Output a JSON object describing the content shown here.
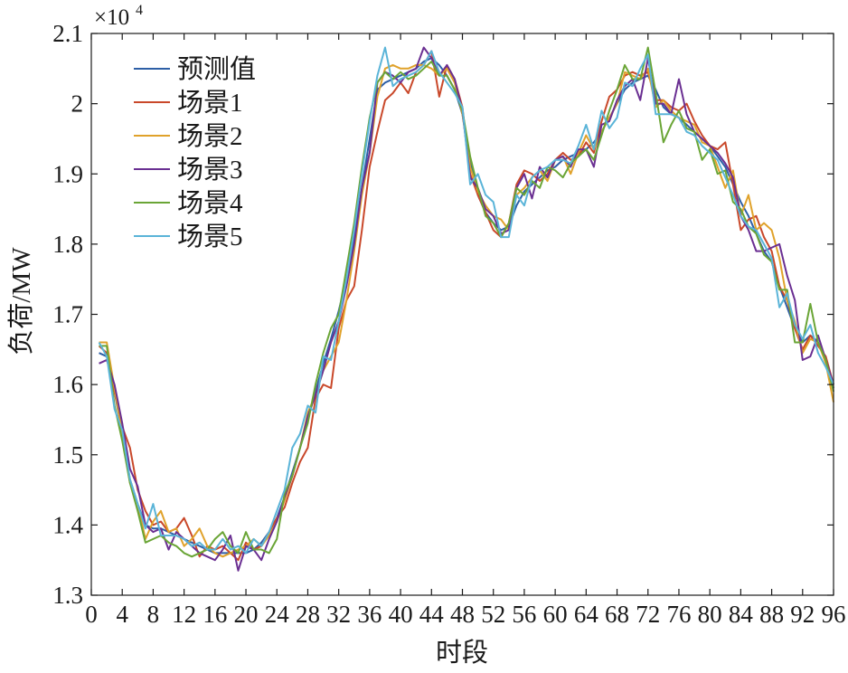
{
  "chart_data": {
    "type": "line",
    "title": "",
    "xlabel": "时段",
    "ylabel": "负荷/MW",
    "y_multiplier": "×10",
    "y_multiplier_exp": "4",
    "xlim": [
      0,
      96
    ],
    "ylim": [
      1.3,
      2.1
    ],
    "x_ticks": [
      0,
      4,
      8,
      12,
      16,
      20,
      24,
      28,
      32,
      36,
      40,
      44,
      48,
      52,
      56,
      60,
      64,
      68,
      72,
      76,
      80,
      84,
      88,
      92,
      96
    ],
    "y_ticks": [
      1.3,
      1.4,
      1.5,
      1.6,
      1.7,
      1.8,
      1.9,
      2.0,
      2.1
    ],
    "y_tick_labels": [
      "1.3",
      "1.4",
      "1.5",
      "1.6",
      "1.7",
      "1.8",
      "1.9",
      "2",
      "2.1"
    ],
    "grid": false,
    "legend_position": "top-left",
    "x": [
      1,
      2,
      3,
      4,
      5,
      6,
      7,
      8,
      9,
      10,
      11,
      12,
      13,
      14,
      15,
      16,
      17,
      18,
      19,
      20,
      21,
      22,
      23,
      24,
      25,
      26,
      27,
      28,
      29,
      30,
      31,
      32,
      33,
      34,
      35,
      36,
      37,
      38,
      39,
      40,
      41,
      42,
      43,
      44,
      45,
      46,
      47,
      48,
      49,
      50,
      51,
      52,
      53,
      54,
      55,
      56,
      57,
      58,
      59,
      60,
      61,
      62,
      63,
      64,
      65,
      66,
      67,
      68,
      69,
      70,
      71,
      72,
      73,
      74,
      75,
      76,
      77,
      78,
      79,
      80,
      81,
      82,
      83,
      84,
      85,
      86,
      87,
      88,
      89,
      90,
      91,
      92,
      93,
      94,
      95,
      96
    ],
    "series": [
      {
        "name": "预测值",
        "color": "#2d5fa6",
        "values": [
          1.645,
          1.64,
          1.59,
          1.53,
          1.465,
          1.43,
          1.4,
          1.395,
          1.395,
          1.39,
          1.385,
          1.38,
          1.375,
          1.37,
          1.365,
          1.36,
          1.36,
          1.36,
          1.36,
          1.36,
          1.365,
          1.375,
          1.39,
          1.41,
          1.44,
          1.475,
          1.51,
          1.55,
          1.59,
          1.63,
          1.665,
          1.705,
          1.75,
          1.81,
          1.88,
          1.95,
          2.02,
          2.03,
          2.035,
          2.04,
          2.045,
          2.05,
          2.06,
          2.065,
          2.055,
          2.04,
          2.02,
          1.985,
          1.92,
          1.87,
          1.845,
          1.83,
          1.82,
          1.825,
          1.855,
          1.875,
          1.885,
          1.895,
          1.905,
          1.91,
          1.92,
          1.925,
          1.93,
          1.935,
          1.945,
          1.96,
          1.98,
          2.0,
          2.02,
          2.03,
          2.035,
          2.04,
          2.02,
          1.995,
          1.985,
          1.98,
          1.97,
          1.96,
          1.95,
          1.94,
          1.925,
          1.91,
          1.885,
          1.86,
          1.84,
          1.815,
          1.79,
          1.775,
          1.74,
          1.71,
          1.68,
          1.66,
          1.67,
          1.66,
          1.635,
          1.595
        ]
      },
      {
        "name": "场景1",
        "color": "#c9482a",
        "values": [
          1.655,
          1.645,
          1.59,
          1.54,
          1.51,
          1.45,
          1.42,
          1.4,
          1.405,
          1.39,
          1.395,
          1.41,
          1.385,
          1.355,
          1.37,
          1.365,
          1.37,
          1.36,
          1.35,
          1.375,
          1.365,
          1.37,
          1.39,
          1.41,
          1.425,
          1.46,
          1.49,
          1.51,
          1.58,
          1.6,
          1.595,
          1.68,
          1.72,
          1.74,
          1.82,
          1.91,
          1.96,
          2.005,
          2.015,
          2.03,
          2.015,
          2.045,
          2.055,
          2.075,
          2.01,
          2.055,
          2.035,
          1.995,
          1.9,
          1.87,
          1.845,
          1.82,
          1.81,
          1.83,
          1.885,
          1.905,
          1.9,
          1.89,
          1.9,
          1.92,
          1.93,
          1.92,
          1.925,
          1.945,
          1.93,
          1.975,
          2.01,
          2.02,
          2.04,
          2.045,
          2.04,
          2.045,
          2.005,
          2.005,
          1.995,
          1.99,
          2.0,
          1.975,
          1.955,
          1.94,
          1.935,
          1.945,
          1.885,
          1.82,
          1.835,
          1.84,
          1.81,
          1.79,
          1.74,
          1.72,
          1.68,
          1.65,
          1.67,
          1.655,
          1.64,
          1.6
        ]
      },
      {
        "name": "场景2",
        "color": "#e0a22b",
        "values": [
          1.66,
          1.66,
          1.595,
          1.53,
          1.46,
          1.43,
          1.38,
          1.405,
          1.42,
          1.39,
          1.395,
          1.37,
          1.38,
          1.395,
          1.37,
          1.36,
          1.355,
          1.36,
          1.365,
          1.37,
          1.38,
          1.37,
          1.385,
          1.405,
          1.435,
          1.47,
          1.51,
          1.56,
          1.585,
          1.62,
          1.64,
          1.66,
          1.72,
          1.79,
          1.87,
          1.93,
          2.01,
          2.05,
          2.055,
          2.05,
          2.05,
          2.055,
          2.055,
          2.05,
          2.04,
          2.05,
          2.03,
          1.985,
          1.91,
          1.875,
          1.855,
          1.84,
          1.835,
          1.82,
          1.87,
          1.88,
          1.895,
          1.905,
          1.89,
          1.92,
          1.925,
          1.9,
          1.93,
          1.955,
          1.935,
          1.96,
          1.98,
          2.0,
          2.045,
          2.04,
          2.035,
          2.05,
          1.995,
          2.005,
          1.99,
          1.98,
          1.975,
          1.97,
          1.945,
          1.94,
          1.91,
          1.88,
          1.905,
          1.84,
          1.87,
          1.82,
          1.83,
          1.82,
          1.78,
          1.72,
          1.69,
          1.645,
          1.665,
          1.66,
          1.63,
          1.575
        ]
      },
      {
        "name": "场景3",
        "color": "#6a2f92",
        "values": [
          1.63,
          1.635,
          1.6,
          1.545,
          1.48,
          1.455,
          1.4,
          1.39,
          1.395,
          1.365,
          1.39,
          1.38,
          1.37,
          1.36,
          1.355,
          1.35,
          1.365,
          1.385,
          1.335,
          1.37,
          1.365,
          1.35,
          1.38,
          1.405,
          1.44,
          1.47,
          1.51,
          1.555,
          1.585,
          1.62,
          1.66,
          1.69,
          1.74,
          1.8,
          1.88,
          1.93,
          2.03,
          2.045,
          2.04,
          2.03,
          2.045,
          2.05,
          2.08,
          2.065,
          2.04,
          2.055,
          2.035,
          1.99,
          1.895,
          1.88,
          1.85,
          1.84,
          1.815,
          1.82,
          1.88,
          1.9,
          1.865,
          1.91,
          1.895,
          1.92,
          1.925,
          1.91,
          1.935,
          1.935,
          1.91,
          1.97,
          1.975,
          2.005,
          2.025,
          2.035,
          2.005,
          2.065,
          2.0,
          2.0,
          1.985,
          2.035,
          1.985,
          1.96,
          1.95,
          1.94,
          1.93,
          1.915,
          1.895,
          1.84,
          1.82,
          1.79,
          1.79,
          1.795,
          1.8,
          1.755,
          1.72,
          1.635,
          1.64,
          1.67,
          1.635,
          1.6
        ]
      },
      {
        "name": "场景4",
        "color": "#6aa536",
        "values": [
          1.655,
          1.655,
          1.57,
          1.52,
          1.46,
          1.42,
          1.375,
          1.38,
          1.385,
          1.375,
          1.37,
          1.36,
          1.355,
          1.36,
          1.365,
          1.38,
          1.39,
          1.37,
          1.36,
          1.39,
          1.365,
          1.365,
          1.36,
          1.38,
          1.445,
          1.47,
          1.51,
          1.545,
          1.6,
          1.645,
          1.68,
          1.7,
          1.765,
          1.83,
          1.91,
          1.98,
          2.03,
          2.045,
          2.035,
          2.045,
          2.035,
          2.04,
          2.05,
          2.06,
          2.04,
          2.04,
          2.02,
          1.99,
          1.925,
          1.88,
          1.84,
          1.83,
          1.81,
          1.83,
          1.88,
          1.87,
          1.89,
          1.88,
          1.91,
          1.905,
          1.895,
          1.915,
          1.925,
          1.935,
          1.92,
          1.955,
          1.99,
          2.02,
          2.055,
          2.035,
          2.035,
          2.08,
          2.015,
          1.945,
          1.97,
          1.99,
          1.965,
          1.96,
          1.92,
          1.935,
          1.9,
          1.905,
          1.86,
          1.85,
          1.825,
          1.815,
          1.785,
          1.775,
          1.735,
          1.735,
          1.66,
          1.66,
          1.715,
          1.66,
          1.635,
          1.59
        ]
      },
      {
        "name": "场景5",
        "color": "#5ab4d8",
        "values": [
          1.66,
          1.64,
          1.565,
          1.535,
          1.465,
          1.43,
          1.395,
          1.43,
          1.385,
          1.385,
          1.385,
          1.38,
          1.37,
          1.375,
          1.365,
          1.365,
          1.38,
          1.365,
          1.37,
          1.36,
          1.38,
          1.37,
          1.39,
          1.42,
          1.45,
          1.51,
          1.53,
          1.57,
          1.56,
          1.64,
          1.635,
          1.69,
          1.75,
          1.82,
          1.9,
          1.975,
          2.04,
          2.08,
          2.025,
          2.035,
          2.04,
          2.045,
          2.055,
          2.075,
          2.045,
          2.03,
          2.015,
          1.995,
          1.885,
          1.9,
          1.87,
          1.86,
          1.81,
          1.81,
          1.87,
          1.855,
          1.895,
          1.905,
          1.91,
          1.92,
          1.92,
          1.915,
          1.94,
          1.97,
          1.935,
          1.99,
          1.965,
          1.98,
          2.03,
          2.025,
          2.05,
          2.07,
          1.985,
          1.985,
          1.985,
          1.98,
          1.96,
          1.955,
          1.94,
          1.93,
          1.92,
          1.895,
          1.87,
          1.84,
          1.825,
          1.82,
          1.8,
          1.78,
          1.71,
          1.73,
          1.685,
          1.665,
          1.685,
          1.645,
          1.625,
          1.6
        ]
      }
    ]
  }
}
